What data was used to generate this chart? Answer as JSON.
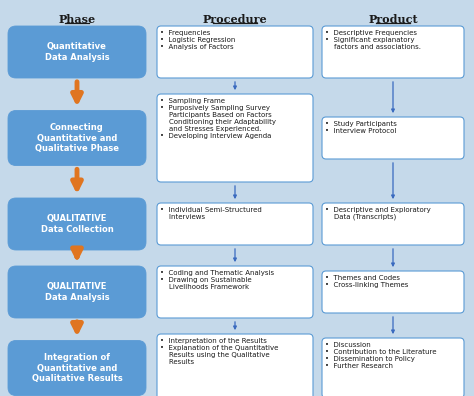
{
  "background_color": "#c5d9ea",
  "phase_box_color": "#5b9bd5",
  "phase_text_color": "#ffffff",
  "proc_box_color": "#ffffff",
  "prod_box_color": "#ffffff",
  "arrow_orange": "#e07520",
  "arrow_blue": "#3a6abf",
  "header_color": "#1a1a1a",
  "text_color": "#1a1a1a",
  "border_color": "#5b9bd5",
  "headers": [
    "Phase",
    "Procedure",
    "Product"
  ],
  "phases": [
    "Quantitative\nData Analysis",
    "Connecting\nQuantitative and\nQualitative Phase",
    "QUALITATIVE\nData Collection",
    "QUALITATIVE\nData Analysis",
    "Integration of\nQuantitative and\nQualitative Results"
  ],
  "procedures": [
    "•  Frequencies\n•  Logistic Regression\n•  Analysis of Factors",
    "•  Sampling Frame\n•  Purposively Sampling Survey\n    Participants Based on Factors\n    Conditioning their Adaptability\n    and Stresses Experienced.\n•  Developing Interview Agenda",
    "•  Individual Semi-Structured\n    Interviews",
    "•  Coding and Thematic Analysis\n•  Drawing on Sustainable\n    Livelihoods Framework",
    "•  Interpretation of the Results\n•  Explanation of the Quantitative\n    Results using the Qualitative\n    Results"
  ],
  "products": [
    "•  Descriptive Frequencies\n•  Significant explanatory\n    factors and associations.",
    "•  Study Participants\n•  Interview Protocol",
    "•  Descriptive and Exploratory\n    Data (Transcripts)",
    "•  Themes and Codes\n•  Cross-linking Themes",
    "•  Discussion\n•  Contribution to the Literature\n•  Dissemination to Policy\n•  Further Research"
  ]
}
